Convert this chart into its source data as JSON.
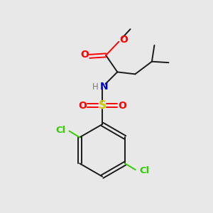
{
  "bg_color": "#e8e8e8",
  "bond_color": "#1a1a1a",
  "colors": {
    "O": "#ff0000",
    "N": "#0000cc",
    "S": "#cccc00",
    "Cl": "#33cc00",
    "H": "#777777",
    "C": "#1a1a1a"
  },
  "figsize": [
    3.0,
    3.0
  ],
  "dpi": 100
}
